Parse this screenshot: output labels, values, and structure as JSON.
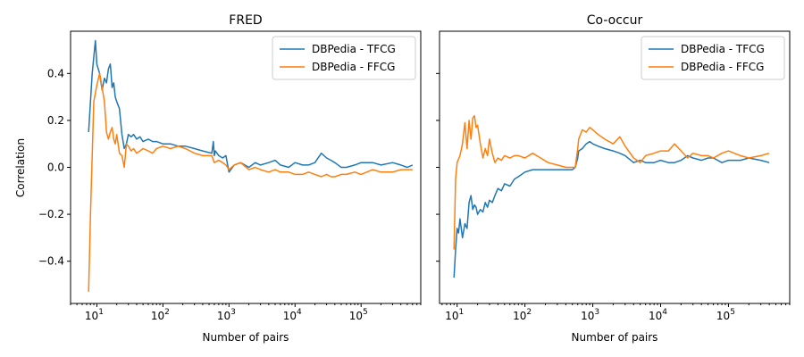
{
  "chart_data": [
    {
      "type": "line",
      "title": "FRED",
      "xlabel": "Number of pairs",
      "ylabel": "Correlation",
      "xscale": "log",
      "xlim": [
        4,
        800000
      ],
      "ylim": [
        -0.58,
        0.58
      ],
      "xticks": [
        10,
        100,
        1000,
        10000,
        100000
      ],
      "xtick_labels": [
        [
          "10",
          "1"
        ],
        [
          "10",
          "2"
        ],
        [
          "10",
          "3"
        ],
        [
          "10",
          "4"
        ],
        [
          "10",
          "5"
        ]
      ],
      "yticks": [
        -0.4,
        -0.2,
        0.0,
        0.2,
        0.4
      ],
      "ytick_labels": [
        "−0.4",
        "−0.2",
        "0.0",
        "0.2",
        "0.4"
      ],
      "legend_position": "top-right",
      "grid": false,
      "series": [
        {
          "name": "DBPedia - TFCG",
          "color": "#1f77b4",
          "x": [
            7.5,
            8.5,
            9.5,
            10,
            11,
            12,
            13,
            14,
            15,
            16,
            17,
            18,
            19,
            20,
            22,
            24,
            26,
            28,
            30,
            33,
            36,
            40,
            45,
            50,
            60,
            70,
            80,
            100,
            130,
            170,
            220,
            300,
            400,
            550,
            580,
            600,
            620,
            700,
            800,
            900,
            1000,
            1200,
            1500,
            2000,
            2500,
            3000,
            4000,
            5000,
            6000,
            8000,
            10000,
            13000,
            16000,
            20000,
            25000,
            30000,
            35000,
            40000,
            50000,
            60000,
            80000,
            100000,
            150000,
            200000,
            300000,
            400000,
            500000,
            600000
          ],
          "y": [
            0.15,
            0.4,
            0.54,
            0.44,
            0.4,
            0.33,
            0.38,
            0.36,
            0.42,
            0.44,
            0.34,
            0.36,
            0.3,
            0.28,
            0.25,
            0.14,
            0.08,
            0.1,
            0.14,
            0.13,
            0.14,
            0.12,
            0.13,
            0.11,
            0.12,
            0.11,
            0.11,
            0.1,
            0.1,
            0.09,
            0.09,
            0.08,
            0.07,
            0.06,
            0.11,
            0.05,
            0.07,
            0.05,
            0.04,
            0.05,
            -0.02,
            0.01,
            0.02,
            0.0,
            0.02,
            0.01,
            0.02,
            0.03,
            0.01,
            0.0,
            0.02,
            0.01,
            0.01,
            0.02,
            0.06,
            0.04,
            0.03,
            0.02,
            0.0,
            0.0,
            0.01,
            0.02,
            0.02,
            0.01,
            0.02,
            0.01,
            0.0,
            0.01
          ]
        },
        {
          "name": "DBPedia - FFCG",
          "color": "#ff7f0e",
          "x": [
            7.5,
            8,
            8.5,
            9,
            10,
            11,
            12,
            13,
            14,
            15,
            16,
            17,
            18,
            19,
            20,
            22,
            24,
            26,
            28,
            30,
            33,
            36,
            40,
            45,
            50,
            60,
            70,
            80,
            100,
            130,
            170,
            220,
            300,
            400,
            550,
            600,
            700,
            800,
            900,
            1000,
            1200,
            1500,
            2000,
            2500,
            3000,
            4000,
            5000,
            6000,
            8000,
            10000,
            13000,
            16000,
            20000,
            25000,
            30000,
            35000,
            40000,
            50000,
            60000,
            80000,
            100000,
            150000,
            200000,
            300000,
            400000,
            500000,
            600000
          ],
          "y": [
            -0.53,
            -0.2,
            0.05,
            0.28,
            0.35,
            0.4,
            0.34,
            0.28,
            0.15,
            0.12,
            0.15,
            0.17,
            0.12,
            0.1,
            0.14,
            0.06,
            0.05,
            0.0,
            0.1,
            0.09,
            0.07,
            0.08,
            0.06,
            0.07,
            0.08,
            0.07,
            0.06,
            0.08,
            0.09,
            0.08,
            0.09,
            0.08,
            0.06,
            0.05,
            0.05,
            0.02,
            0.03,
            0.02,
            0.01,
            -0.01,
            0.01,
            0.02,
            -0.01,
            0.0,
            -0.01,
            -0.02,
            -0.01,
            -0.02,
            -0.02,
            -0.03,
            -0.03,
            -0.02,
            -0.03,
            -0.04,
            -0.03,
            -0.04,
            -0.04,
            -0.03,
            -0.03,
            -0.02,
            -0.03,
            -0.01,
            -0.02,
            -0.02,
            -0.01,
            -0.01,
            -0.01
          ]
        }
      ]
    },
    {
      "type": "line",
      "title": "Co-occur",
      "xlabel": "Number of pairs",
      "ylabel": "",
      "xscale": "log",
      "xlim": [
        5.5,
        800000
      ],
      "ylim": [
        -0.58,
        0.58
      ],
      "xticks": [
        10,
        100,
        1000,
        10000,
        100000
      ],
      "xtick_labels": [
        [
          "10",
          "1"
        ],
        [
          "10",
          "2"
        ],
        [
          "10",
          "3"
        ],
        [
          "10",
          "4"
        ],
        [
          "10",
          "5"
        ]
      ],
      "yticks": [
        -0.4,
        -0.2,
        0.0,
        0.2,
        0.4
      ],
      "ytick_labels": [],
      "legend_position": "top-right",
      "grid": false,
      "series": [
        {
          "name": "DBPedia - TFCG",
          "color": "#1f77b4",
          "x": [
            9,
            9.5,
            10,
            10.5,
            11,
            12,
            13,
            14,
            15,
            16,
            17,
            18,
            19,
            20,
            22,
            24,
            26,
            28,
            30,
            33,
            36,
            40,
            45,
            50,
            60,
            70,
            80,
            100,
            130,
            170,
            220,
            300,
            400,
            500,
            550,
            600,
            620,
            700,
            800,
            900,
            1000,
            1200,
            1500,
            2000,
            2500,
            3000,
            4000,
            5000,
            6000,
            8000,
            10000,
            13000,
            16000,
            20000,
            25000,
            30000,
            40000,
            50000,
            60000,
            80000,
            100000,
            150000,
            200000,
            300000,
            400000
          ],
          "y": [
            -0.47,
            -0.35,
            -0.26,
            -0.28,
            -0.22,
            -0.3,
            -0.24,
            -0.26,
            -0.15,
            -0.12,
            -0.18,
            -0.16,
            -0.17,
            -0.2,
            -0.18,
            -0.19,
            -0.15,
            -0.17,
            -0.14,
            -0.15,
            -0.12,
            -0.09,
            -0.1,
            -0.07,
            -0.08,
            -0.05,
            -0.04,
            -0.02,
            -0.01,
            -0.01,
            -0.01,
            -0.01,
            -0.01,
            -0.01,
            0.0,
            0.04,
            0.07,
            0.08,
            0.1,
            0.11,
            0.1,
            0.09,
            0.08,
            0.07,
            0.06,
            0.05,
            0.02,
            0.03,
            0.02,
            0.02,
            0.03,
            0.02,
            0.02,
            0.03,
            0.05,
            0.04,
            0.03,
            0.04,
            0.04,
            0.02,
            0.03,
            0.03,
            0.04,
            0.03,
            0.02
          ]
        },
        {
          "name": "DBPedia - FFCG",
          "color": "#ff7f0e",
          "x": [
            9,
            9.5,
            10,
            11,
            12,
            13,
            14,
            15,
            16,
            17,
            18,
            19,
            20,
            22,
            24,
            26,
            28,
            30,
            33,
            36,
            40,
            45,
            50,
            60,
            70,
            80,
            100,
            130,
            170,
            220,
            300,
            400,
            500,
            550,
            600,
            620,
            700,
            800,
            900,
            1000,
            1200,
            1500,
            2000,
            2500,
            3000,
            4000,
            5000,
            6000,
            8000,
            10000,
            13000,
            16000,
            20000,
            25000,
            30000,
            40000,
            50000,
            60000,
            80000,
            100000,
            150000,
            200000,
            300000,
            400000
          ],
          "y": [
            -0.35,
            -0.05,
            0.02,
            0.05,
            0.1,
            0.19,
            0.08,
            0.2,
            0.12,
            0.21,
            0.22,
            0.17,
            0.18,
            0.1,
            0.04,
            0.08,
            0.05,
            0.12,
            0.06,
            0.02,
            0.04,
            0.03,
            0.05,
            0.04,
            0.05,
            0.05,
            0.04,
            0.06,
            0.04,
            0.02,
            0.01,
            0.0,
            0.0,
            0.0,
            0.08,
            0.12,
            0.16,
            0.15,
            0.17,
            0.16,
            0.14,
            0.12,
            0.1,
            0.13,
            0.09,
            0.04,
            0.02,
            0.05,
            0.06,
            0.07,
            0.07,
            0.1,
            0.07,
            0.04,
            0.06,
            0.05,
            0.05,
            0.04,
            0.06,
            0.07,
            0.05,
            0.04,
            0.05,
            0.06
          ]
        }
      ]
    }
  ]
}
